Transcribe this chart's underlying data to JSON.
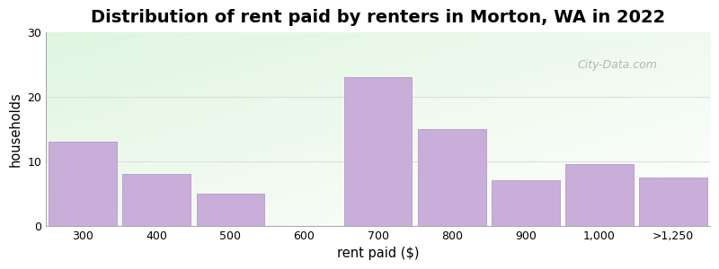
{
  "title": "Distribution of rent paid by renters in Morton, WA in 2022",
  "xlabel": "rent paid ($)",
  "ylabel": "households",
  "categories": [
    "300",
    "400",
    "500",
    "600",
    "700",
    "800",
    "900",
    "1,000",
    ">1,250"
  ],
  "values": [
    13,
    8,
    5,
    0,
    23,
    15,
    7,
    9.5,
    7.5
  ],
  "bar_color": "#c8aed8",
  "bar_edge_color": "#b898cc",
  "ylim": [
    0,
    30
  ],
  "yticks": [
    0,
    10,
    20,
    30
  ],
  "figure_bg": "#ffffff",
  "title_fontsize": 14,
  "axis_label_fontsize": 10.5,
  "tick_fontsize": 9,
  "watermark_text": "City-Data.com",
  "grid_color": "#dddddd",
  "bar_width": 0.92
}
